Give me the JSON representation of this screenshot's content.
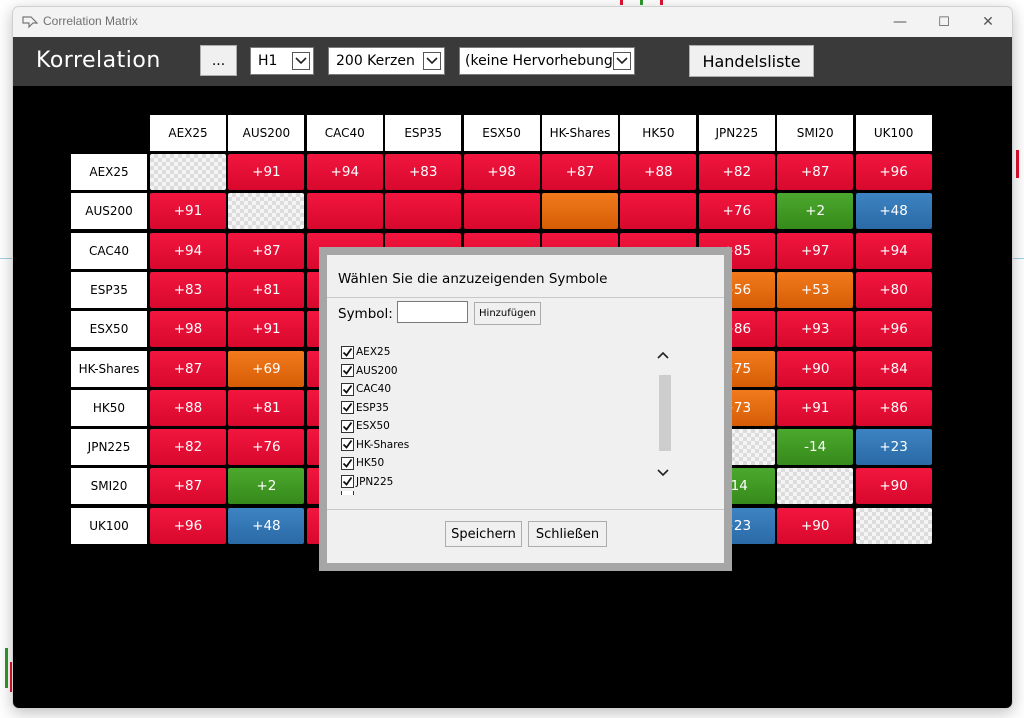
{
  "window": {
    "title": "Correlation Matrix",
    "controls": {
      "minimize": "—",
      "maximize": "☐",
      "close": "✕"
    }
  },
  "toolbar": {
    "title": "Korrelation",
    "menu_label": "...",
    "timeframe": "H1",
    "candles": "200 Kerzen",
    "highlight": "(keine Hervorhebung)",
    "trade_list_label": "Handelsliste"
  },
  "matrix": {
    "columns": [
      "AEX25",
      "AUS200",
      "CAC40",
      "ESP35",
      "ESX50",
      "HK-Shares",
      "HK50",
      "JPN225",
      "SMI20",
      "UK100"
    ],
    "rows": [
      {
        "label": "AEX25",
        "cells": [
          {
            "t": "",
            "c": "diag"
          },
          {
            "t": "+91",
            "c": "red"
          },
          {
            "t": "+94",
            "c": "red"
          },
          {
            "t": "+83",
            "c": "red"
          },
          {
            "t": "+98",
            "c": "red"
          },
          {
            "t": "+87",
            "c": "red"
          },
          {
            "t": "+88",
            "c": "red"
          },
          {
            "t": "+82",
            "c": "red"
          },
          {
            "t": "+87",
            "c": "red"
          },
          {
            "t": "+96",
            "c": "red"
          }
        ]
      },
      {
        "label": "AUS200",
        "cells": [
          {
            "t": "+91",
            "c": "red"
          },
          {
            "t": "",
            "c": "diag"
          },
          {
            "t": "",
            "c": "red"
          },
          {
            "t": "",
            "c": "red"
          },
          {
            "t": "",
            "c": "red"
          },
          {
            "t": "",
            "c": "orange"
          },
          {
            "t": "",
            "c": "red"
          },
          {
            "t": "+76",
            "c": "red"
          },
          {
            "t": "+2",
            "c": "green"
          },
          {
            "t": "+48",
            "c": "blue"
          }
        ]
      },
      {
        "label": "CAC40",
        "cells": [
          {
            "t": "+94",
            "c": "red"
          },
          {
            "t": "+87",
            "c": "red"
          },
          {
            "t": "",
            "c": "red"
          },
          {
            "t": "",
            "c": "red"
          },
          {
            "t": "",
            "c": "red"
          },
          {
            "t": "",
            "c": "red"
          },
          {
            "t": "",
            "c": "red"
          },
          {
            "t": "+85",
            "c": "red"
          },
          {
            "t": "+97",
            "c": "red"
          },
          {
            "t": "+94",
            "c": "red"
          }
        ]
      },
      {
        "label": "ESP35",
        "cells": [
          {
            "t": "+83",
            "c": "red"
          },
          {
            "t": "+81",
            "c": "red"
          },
          {
            "t": "",
            "c": "red"
          },
          {
            "t": "",
            "c": "red"
          },
          {
            "t": "",
            "c": "red"
          },
          {
            "t": "",
            "c": "red"
          },
          {
            "t": "",
            "c": "red"
          },
          {
            "t": "+56",
            "c": "orange"
          },
          {
            "t": "+53",
            "c": "orange"
          },
          {
            "t": "+80",
            "c": "red"
          }
        ]
      },
      {
        "label": "ESX50",
        "cells": [
          {
            "t": "+98",
            "c": "red"
          },
          {
            "t": "+91",
            "c": "red"
          },
          {
            "t": "",
            "c": "red"
          },
          {
            "t": "",
            "c": "red"
          },
          {
            "t": "",
            "c": "red"
          },
          {
            "t": "",
            "c": "red"
          },
          {
            "t": "",
            "c": "red"
          },
          {
            "t": "+86",
            "c": "red"
          },
          {
            "t": "+93",
            "c": "red"
          },
          {
            "t": "+96",
            "c": "red"
          }
        ]
      },
      {
        "label": "HK-Shares",
        "cells": [
          {
            "t": "+87",
            "c": "red"
          },
          {
            "t": "+69",
            "c": "orange"
          },
          {
            "t": "",
            "c": "red"
          },
          {
            "t": "",
            "c": "red"
          },
          {
            "t": "",
            "c": "red"
          },
          {
            "t": "",
            "c": "red"
          },
          {
            "t": "",
            "c": "red"
          },
          {
            "t": "+75",
            "c": "orange"
          },
          {
            "t": "+90",
            "c": "red"
          },
          {
            "t": "+84",
            "c": "red"
          }
        ]
      },
      {
        "label": "HK50",
        "cells": [
          {
            "t": "+88",
            "c": "red"
          },
          {
            "t": "+81",
            "c": "red"
          },
          {
            "t": "",
            "c": "red"
          },
          {
            "t": "",
            "c": "red"
          },
          {
            "t": "",
            "c": "red"
          },
          {
            "t": "",
            "c": "red"
          },
          {
            "t": "",
            "c": "red"
          },
          {
            "t": "+73",
            "c": "orange"
          },
          {
            "t": "+91",
            "c": "red"
          },
          {
            "t": "+86",
            "c": "red"
          }
        ]
      },
      {
        "label": "JPN225",
        "cells": [
          {
            "t": "+82",
            "c": "red"
          },
          {
            "t": "+76",
            "c": "red"
          },
          {
            "t": "",
            "c": "red"
          },
          {
            "t": "",
            "c": "red"
          },
          {
            "t": "",
            "c": "red"
          },
          {
            "t": "",
            "c": "red"
          },
          {
            "t": "",
            "c": "red"
          },
          {
            "t": "",
            "c": "diag"
          },
          {
            "t": "-14",
            "c": "green"
          },
          {
            "t": "+23",
            "c": "blue"
          }
        ]
      },
      {
        "label": "SMI20",
        "cells": [
          {
            "t": "+87",
            "c": "red"
          },
          {
            "t": "+2",
            "c": "green"
          },
          {
            "t": "",
            "c": "red"
          },
          {
            "t": "",
            "c": "red"
          },
          {
            "t": "",
            "c": "red"
          },
          {
            "t": "",
            "c": "red"
          },
          {
            "t": "",
            "c": "red"
          },
          {
            "t": "-14",
            "c": "green"
          },
          {
            "t": "",
            "c": "diag"
          },
          {
            "t": "+90",
            "c": "red"
          }
        ]
      },
      {
        "label": "UK100",
        "cells": [
          {
            "t": "+96",
            "c": "red"
          },
          {
            "t": "+48",
            "c": "blue"
          },
          {
            "t": "",
            "c": "red"
          },
          {
            "t": "",
            "c": "red"
          },
          {
            "t": "",
            "c": "red"
          },
          {
            "t": "",
            "c": "red"
          },
          {
            "t": "",
            "c": "red"
          },
          {
            "t": "+23",
            "c": "blue"
          },
          {
            "t": "+90",
            "c": "red"
          },
          {
            "t": "",
            "c": "diag"
          }
        ]
      }
    ]
  },
  "dialog": {
    "title": "Wählen Sie die anzuzeigenden Symbole",
    "symbol_label": "Symbol:",
    "symbol_value": "",
    "add_label": "Hinzufügen",
    "symbols": [
      {
        "name": "AEX25",
        "checked": true
      },
      {
        "name": "AUS200",
        "checked": true
      },
      {
        "name": "CAC40",
        "checked": true
      },
      {
        "name": "ESP35",
        "checked": true
      },
      {
        "name": "ESX50",
        "checked": true
      },
      {
        "name": "HK-Shares",
        "checked": true
      },
      {
        "name": "HK50",
        "checked": true
      },
      {
        "name": "JPN225",
        "checked": true
      }
    ],
    "save_label": "Speichern",
    "close_label": "Schließen"
  },
  "colors": {
    "strong_positive": "#e8103a",
    "medium_positive": "#e56a10",
    "neutral": "#3f9a24",
    "weak_positive": "#3377b5",
    "toolbar_bg": "#3a3a3a"
  }
}
